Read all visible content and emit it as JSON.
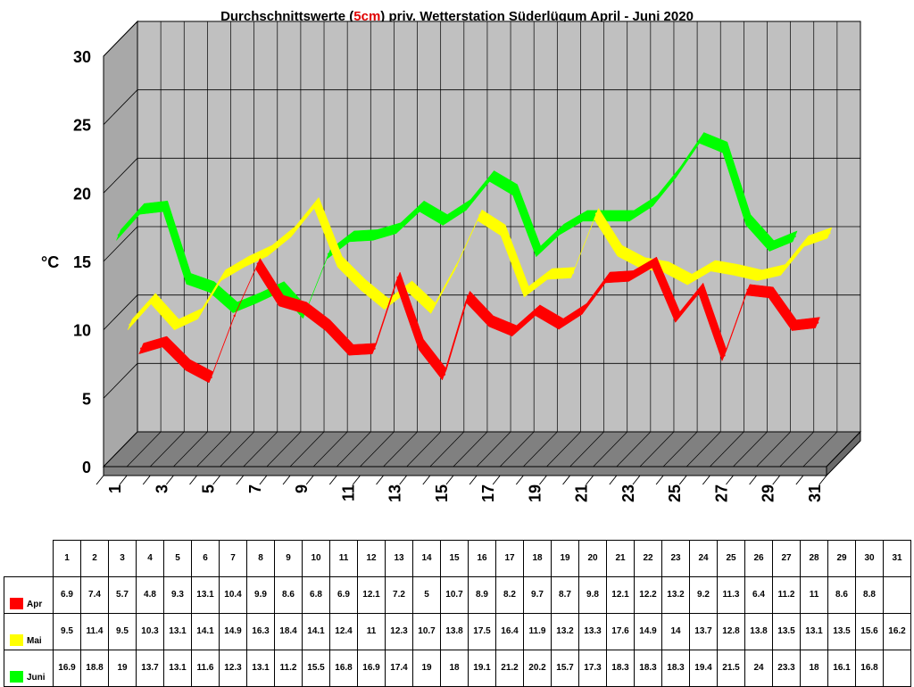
{
  "title_pre": "Durchschnittswerte (",
  "title_hl": "5cm",
  "title_post": ") priv. Wetterstation Süderlügum April - Juni 2020",
  "chart_data": {
    "type": "line",
    "title": "Durchschnittswerte (5cm) priv. Wetterstation Süderlügum April - Juni 2020",
    "ylabel": "°C",
    "ylim": [
      0,
      30
    ],
    "yticks": [
      0,
      5,
      10,
      15,
      20,
      25,
      30
    ],
    "x": [
      1,
      2,
      3,
      4,
      5,
      6,
      7,
      8,
      9,
      10,
      11,
      12,
      13,
      14,
      15,
      16,
      17,
      18,
      19,
      20,
      21,
      22,
      23,
      24,
      25,
      26,
      27,
      28,
      29,
      30,
      31
    ],
    "xtick_labels": [
      "1",
      "3",
      "5",
      "7",
      "9",
      "11",
      "13",
      "15",
      "17",
      "19",
      "21",
      "23",
      "25",
      "27",
      "29",
      "31"
    ],
    "grid": true,
    "legend": "table-bottom",
    "series": [
      {
        "name": "Apr",
        "color": "#ff0000",
        "values": [
          6.9,
          7.4,
          5.7,
          4.8,
          9.3,
          13.1,
          10.4,
          9.9,
          8.6,
          6.8,
          6.9,
          12.1,
          7.2,
          5,
          10.7,
          8.9,
          8.2,
          9.7,
          8.7,
          9.8,
          12.1,
          12.2,
          13.2,
          9.2,
          11.3,
          6.4,
          11.2,
          11,
          8.6,
          8.8,
          null
        ]
      },
      {
        "name": "Mai",
        "color": "#ffff00",
        "values": [
          9.5,
          11.4,
          9.5,
          10.3,
          13.1,
          14.1,
          14.9,
          16.3,
          18.4,
          14.1,
          12.4,
          11,
          12.3,
          10.7,
          13.8,
          17.5,
          16.4,
          11.9,
          13.2,
          13.3,
          17.6,
          14.9,
          14,
          13.7,
          12.8,
          13.8,
          13.5,
          13.1,
          13.5,
          15.6,
          16.2
        ]
      },
      {
        "name": "Juni",
        "color": "#00ff00",
        "values": [
          16.9,
          18.8,
          19,
          13.7,
          13.1,
          11.6,
          12.3,
          13.1,
          11.2,
          15.5,
          16.8,
          16.9,
          17.4,
          19,
          18,
          19.1,
          21.2,
          20.2,
          15.7,
          17.3,
          18.3,
          18.3,
          18.3,
          19.4,
          21.5,
          24,
          23.3,
          18,
          16.1,
          16.8,
          null
        ]
      }
    ]
  }
}
